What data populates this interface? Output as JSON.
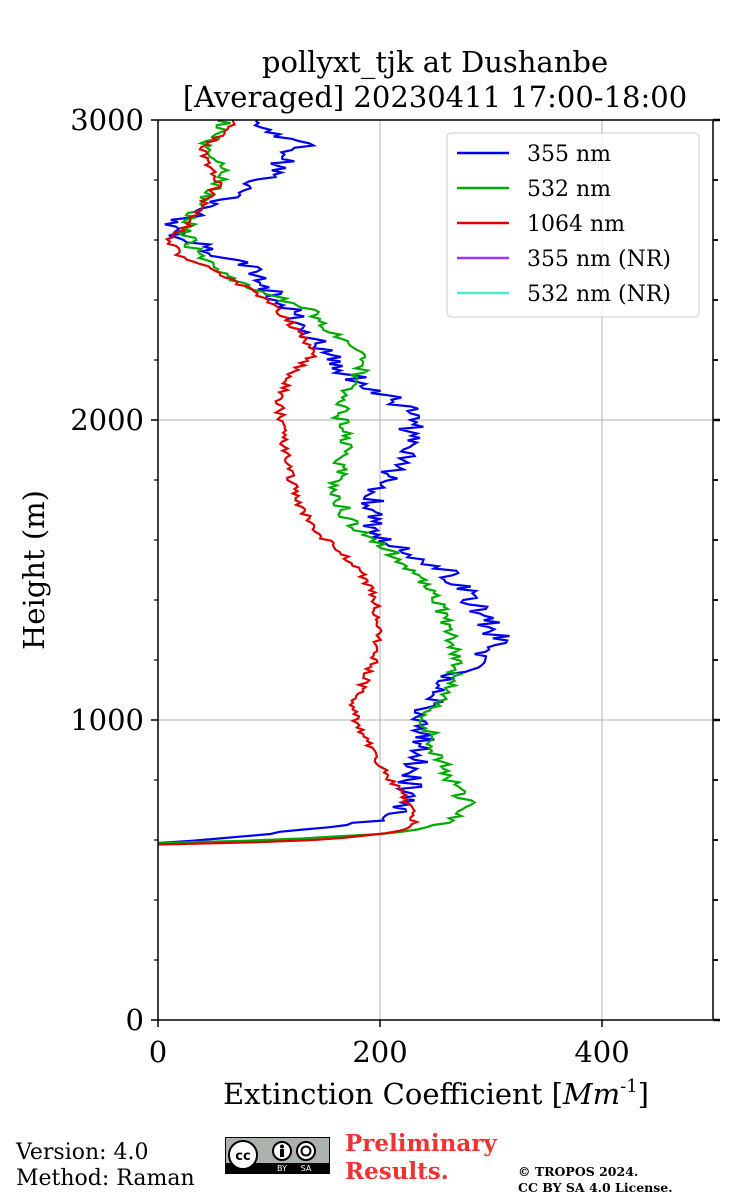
{
  "chart_data": {
    "type": "line",
    "title_line1": "pollyxt_tjk at Dushanbe",
    "title_line2": "[Averaged] 20230411 17:00-18:00",
    "xlabel": "Extinction Coefficient [",
    "xlabel_unit": "Mm",
    "xlabel_exp": "-1",
    "xlabel_close": "]",
    "ylabel": "Height (m)",
    "xlim": [
      0,
      500
    ],
    "ylim": [
      0,
      3000
    ],
    "xticks": [
      "0",
      "200",
      "400"
    ],
    "xtick_values": [
      0,
      200,
      400
    ],
    "yticks": [
      "0",
      "1000",
      "2000",
      "3000"
    ],
    "ytick_values": [
      0,
      1000,
      2000,
      3000
    ],
    "grid": true,
    "legend_position": "top-right",
    "series": [
      {
        "name": "355 nm",
        "color": "#0000ee",
        "noise": 12,
        "points": [
          [
            0,
            590
          ],
          [
            40,
            600
          ],
          [
            100,
            620
          ],
          [
            150,
            640
          ],
          [
            190,
            660
          ],
          [
            215,
            690
          ],
          [
            225,
            720
          ],
          [
            230,
            750
          ],
          [
            225,
            790
          ],
          [
            230,
            850
          ],
          [
            240,
            920
          ],
          [
            235,
            980
          ],
          [
            245,
            1050
          ],
          [
            250,
            1100
          ],
          [
            265,
            1150
          ],
          [
            290,
            1200
          ],
          [
            310,
            1260
          ],
          [
            295,
            1330
          ],
          [
            280,
            1420
          ],
          [
            260,
            1500
          ],
          [
            225,
            1560
          ],
          [
            200,
            1620
          ],
          [
            190,
            1700
          ],
          [
            205,
            1800
          ],
          [
            220,
            1880
          ],
          [
            225,
            1950
          ],
          [
            230,
            2000
          ],
          [
            225,
            2040
          ],
          [
            195,
            2100
          ],
          [
            165,
            2170
          ],
          [
            140,
            2270
          ],
          [
            125,
            2350
          ],
          [
            110,
            2400
          ],
          [
            85,
            2500
          ],
          [
            50,
            2560
          ],
          [
            15,
            2620
          ],
          [
            10,
            2650
          ],
          [
            40,
            2700
          ],
          [
            85,
            2780
          ],
          [
            110,
            2850
          ],
          [
            130,
            2920
          ],
          [
            100,
            2970
          ],
          [
            85,
            3000
          ]
        ]
      },
      {
        "name": "532 nm",
        "color": "#00aa00",
        "noise": 7,
        "points": [
          [
            0,
            590
          ],
          [
            60,
            595
          ],
          [
            130,
            605
          ],
          [
            200,
            620
          ],
          [
            245,
            640
          ],
          [
            265,
            660
          ],
          [
            275,
            690
          ],
          [
            280,
            720
          ],
          [
            270,
            760
          ],
          [
            260,
            830
          ],
          [
            250,
            900
          ],
          [
            245,
            960
          ],
          [
            240,
            1000
          ],
          [
            250,
            1050
          ],
          [
            265,
            1120
          ],
          [
            270,
            1200
          ],
          [
            265,
            1300
          ],
          [
            250,
            1400
          ],
          [
            235,
            1480
          ],
          [
            210,
            1560
          ],
          [
            185,
            1620
          ],
          [
            170,
            1680
          ],
          [
            160,
            1760
          ],
          [
            165,
            1850
          ],
          [
            170,
            1950
          ],
          [
            165,
            2000
          ],
          [
            165,
            2080
          ],
          [
            180,
            2150
          ],
          [
            190,
            2220
          ],
          [
            155,
            2300
          ],
          [
            140,
            2360
          ],
          [
            100,
            2420
          ],
          [
            60,
            2480
          ],
          [
            35,
            2550
          ],
          [
            25,
            2620
          ],
          [
            30,
            2680
          ],
          [
            45,
            2750
          ],
          [
            60,
            2800
          ],
          [
            55,
            2860
          ],
          [
            45,
            2920
          ],
          [
            55,
            2960
          ],
          [
            60,
            3000
          ]
        ]
      },
      {
        "name": "1064 nm",
        "color": "#dd0000",
        "noise": 4,
        "points": [
          [
            0,
            585
          ],
          [
            70,
            590
          ],
          [
            140,
            600
          ],
          [
            190,
            615
          ],
          [
            220,
            630
          ],
          [
            230,
            655
          ],
          [
            230,
            690
          ],
          [
            225,
            720
          ],
          [
            220,
            750
          ],
          [
            210,
            800
          ],
          [
            200,
            850
          ],
          [
            190,
            920
          ],
          [
            180,
            980
          ],
          [
            175,
            1050
          ],
          [
            185,
            1120
          ],
          [
            195,
            1200
          ],
          [
            200,
            1300
          ],
          [
            195,
            1400
          ],
          [
            185,
            1480
          ],
          [
            165,
            1560
          ],
          [
            145,
            1620
          ],
          [
            130,
            1700
          ],
          [
            120,
            1800
          ],
          [
            115,
            1900
          ],
          [
            110,
            2000
          ],
          [
            110,
            2080
          ],
          [
            120,
            2150
          ],
          [
            140,
            2220
          ],
          [
            125,
            2300
          ],
          [
            105,
            2380
          ],
          [
            80,
            2440
          ],
          [
            50,
            2500
          ],
          [
            20,
            2550
          ],
          [
            10,
            2600
          ],
          [
            30,
            2660
          ],
          [
            40,
            2720
          ],
          [
            55,
            2790
          ],
          [
            45,
            2850
          ],
          [
            40,
            2910
          ],
          [
            60,
            2960
          ],
          [
            70,
            3000
          ]
        ]
      },
      {
        "name": "355 nm (NR)",
        "color": "#9933ff",
        "noise": 0,
        "points": []
      },
      {
        "name": "532 nm (NR)",
        "color": "#44eecc",
        "noise": 0,
        "points": []
      }
    ]
  },
  "footer": {
    "version": "Version: 4.0",
    "method": "Method: Raman",
    "preliminary_line1": "Preliminary",
    "preliminary_line2": "Results.",
    "copyright_line1": "© TROPOS 2024.",
    "copyright_line2": "CC BY SA 4.0 License.",
    "badge_cc": "cc",
    "badge_by": "BY",
    "badge_sa": "SA"
  }
}
